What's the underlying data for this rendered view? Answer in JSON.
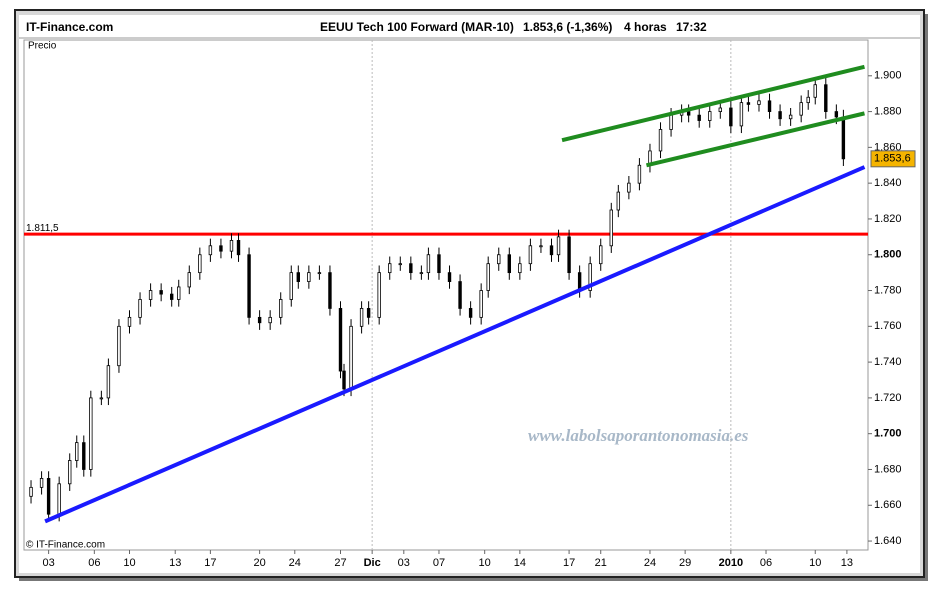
{
  "chart_data": {
    "type": "candlestick",
    "site": "IT-Finance.com",
    "title": "EEUU Tech 100 Forward (MAR-10)",
    "quote": "1.853,6 (-1,36%)",
    "interval": "4 horas",
    "time": "17:32",
    "ylabel": "Precio",
    "copyright": "© IT-Finance.com",
    "watermark": "www.labolsaporantonomasia.es",
    "xlim": [
      0,
      240
    ],
    "ylim": [
      1635,
      1920
    ],
    "xticks": [
      {
        "value": 7,
        "label": "03"
      },
      {
        "value": 20,
        "label": "06"
      },
      {
        "value": 30,
        "label": "10"
      },
      {
        "value": 43,
        "label": "13"
      },
      {
        "value": 53,
        "label": "17"
      },
      {
        "value": 67,
        "label": "20"
      },
      {
        "value": 77,
        "label": "24"
      },
      {
        "value": 90,
        "label": "27"
      },
      {
        "value": 99,
        "label": "Dic",
        "bold": true
      },
      {
        "value": 108,
        "label": "03"
      },
      {
        "value": 118,
        "label": "07"
      },
      {
        "value": 131,
        "label": "10"
      },
      {
        "value": 141,
        "label": "14"
      },
      {
        "value": 155,
        "label": "17"
      },
      {
        "value": 164,
        "label": "21"
      },
      {
        "value": 178,
        "label": "24"
      },
      {
        "value": 188,
        "label": "29"
      },
      {
        "value": 201,
        "label": "2010",
        "bold": true
      },
      {
        "value": 211,
        "label": "06"
      },
      {
        "value": 225,
        "label": "10"
      },
      {
        "value": 234,
        "label": "13"
      }
    ],
    "yticks": [
      {
        "value": 1640,
        "label": "1.640"
      },
      {
        "value": 1660,
        "label": "1.660"
      },
      {
        "value": 1680,
        "label": "1.680"
      },
      {
        "value": 1700,
        "label": "1.700",
        "bold": true
      },
      {
        "value": 1720,
        "label": "1.720"
      },
      {
        "value": 1740,
        "label": "1.740"
      },
      {
        "value": 1760,
        "label": "1.760"
      },
      {
        "value": 1780,
        "label": "1.780"
      },
      {
        "value": 1800,
        "label": "1.800",
        "bold": true
      },
      {
        "value": 1820,
        "label": "1.820"
      },
      {
        "value": 1840,
        "label": "1.840"
      },
      {
        "value": 1860,
        "label": "1.860"
      },
      {
        "value": 1880,
        "label": "1.880"
      },
      {
        "value": 1900,
        "label": "1.900"
      }
    ],
    "up_color": "#ffffff",
    "down_color": "#000000",
    "x": [
      2,
      5,
      7,
      10,
      13,
      15,
      17,
      19,
      22,
      24,
      27,
      30,
      33,
      36,
      39,
      42,
      44,
      47,
      50,
      53,
      56,
      59,
      61,
      64,
      67,
      70,
      73,
      76,
      78,
      81,
      84,
      87,
      90,
      91,
      93,
      96,
      98,
      101,
      104,
      107,
      110,
      113,
      115,
      118,
      121,
      124,
      127,
      130,
      132,
      135,
      138,
      141,
      144,
      147,
      150,
      152,
      155,
      158,
      161,
      164,
      167,
      169,
      172,
      175,
      178,
      181,
      184,
      187,
      189,
      192,
      195,
      198,
      201,
      204,
      206,
      209,
      212,
      215,
      218,
      221,
      223,
      225,
      228,
      231,
      233
    ],
    "open": [
      1665,
      1670,
      1675,
      1655,
      1672,
      1685,
      1695,
      1680,
      1720,
      1720,
      1738,
      1760,
      1765,
      1775,
      1780,
      1778,
      1775,
      1782,
      1790,
      1800,
      1805,
      1802,
      1808,
      1800,
      1765,
      1762,
      1765,
      1775,
      1790,
      1785,
      1790,
      1790,
      1770,
      1735,
      1725,
      1760,
      1770,
      1765,
      1790,
      1795,
      1795,
      1790,
      1790,
      1800,
      1790,
      1785,
      1770,
      1765,
      1780,
      1795,
      1800,
      1790,
      1795,
      1805,
      1805,
      1800,
      1810,
      1790,
      1780,
      1795,
      1805,
      1825,
      1835,
      1840,
      1850,
      1858,
      1870,
      1878,
      1880,
      1878,
      1875,
      1880,
      1882,
      1872,
      1885,
      1884,
      1886,
      1880,
      1876,
      1878,
      1885,
      1888,
      1895,
      1880,
      1877
    ],
    "high": [
      1674,
      1679,
      1679,
      1676,
      1689,
      1699,
      1699,
      1724,
      1724,
      1742,
      1764,
      1769,
      1779,
      1784,
      1784,
      1782,
      1786,
      1794,
      1804,
      1809,
      1809,
      1812,
      1812,
      1804,
      1769,
      1769,
      1779,
      1794,
      1794,
      1794,
      1794,
      1794,
      1774,
      1739,
      1764,
      1774,
      1774,
      1794,
      1799,
      1799,
      1799,
      1794,
      1804,
      1804,
      1794,
      1789,
      1774,
      1784,
      1799,
      1804,
      1804,
      1799,
      1809,
      1809,
      1809,
      1814,
      1814,
      1794,
      1799,
      1809,
      1829,
      1839,
      1844,
      1854,
      1862,
      1874,
      1882,
      1884,
      1884,
      1882,
      1884,
      1886,
      1886,
      1889,
      1889,
      1890,
      1890,
      1884,
      1882,
      1889,
      1892,
      1899,
      1899,
      1884,
      1881
    ],
    "low": [
      1661,
      1666,
      1651,
      1651,
      1668,
      1681,
      1676,
      1676,
      1716,
      1716,
      1734,
      1756,
      1761,
      1771,
      1774,
      1771,
      1771,
      1778,
      1786,
      1796,
      1798,
      1798,
      1796,
      1761,
      1758,
      1758,
      1761,
      1771,
      1781,
      1781,
      1786,
      1766,
      1731,
      1721,
      1721,
      1756,
      1761,
      1761,
      1786,
      1791,
      1786,
      1786,
      1786,
      1786,
      1781,
      1766,
      1761,
      1761,
      1776,
      1791,
      1786,
      1786,
      1791,
      1801,
      1796,
      1796,
      1786,
      1776,
      1776,
      1791,
      1801,
      1821,
      1831,
      1836,
      1846,
      1854,
      1866,
      1874,
      1874,
      1871,
      1871,
      1876,
      1868,
      1868,
      1880,
      1880,
      1876,
      1872,
      1872,
      1874,
      1881,
      1884,
      1876,
      1873,
      1849.6
    ],
    "close": [
      1670,
      1675,
      1655,
      1672,
      1685,
      1695,
      1680,
      1720,
      1720,
      1738,
      1760,
      1765,
      1775,
      1780,
      1778,
      1775,
      1782,
      1790,
      1800,
      1805,
      1802,
      1808,
      1800,
      1765,
      1762,
      1765,
      1775,
      1790,
      1785,
      1790,
      1790,
      1770,
      1735,
      1725,
      1760,
      1770,
      1765,
      1790,
      1795,
      1795,
      1790,
      1790,
      1800,
      1790,
      1785,
      1770,
      1765,
      1780,
      1795,
      1800,
      1790,
      1795,
      1805,
      1805,
      1800,
      1810,
      1790,
      1780,
      1795,
      1805,
      1825,
      1835,
      1840,
      1850,
      1858,
      1870,
      1878,
      1880,
      1878,
      1875,
      1880,
      1882,
      1872,
      1885,
      1884,
      1886,
      1880,
      1876,
      1878,
      1885,
      1888,
      1895,
      1880,
      1877,
      1853.6
    ],
    "current": {
      "value": 1853.6,
      "label": "1.853,6",
      "color": "#f5b400"
    },
    "level": {
      "value": 1811.5,
      "label": "1.811,5",
      "color": "#ff0000"
    },
    "lines": [
      {
        "color": "#1a1aff",
        "x": [
          6,
          239
        ],
        "y": [
          1651,
          1849
        ]
      },
      {
        "color": "#1f8c1f",
        "x": [
          153,
          239
        ],
        "y": [
          1864,
          1905
        ]
      },
      {
        "color": "#1f8c1f",
        "x": [
          177,
          239
        ],
        "y": [
          1850,
          1879
        ]
      }
    ]
  }
}
